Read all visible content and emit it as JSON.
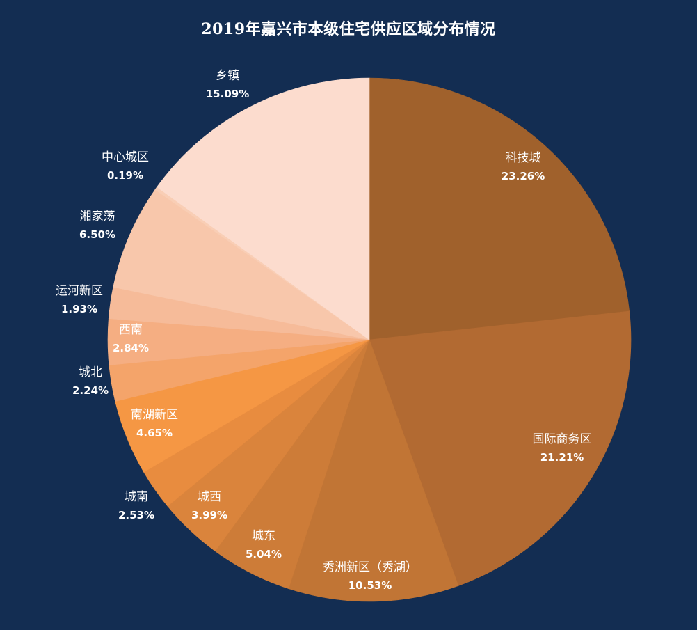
{
  "chart_data": {
    "type": "pie",
    "title": "2019年嘉兴市本级住宅供应区域分布情况",
    "unit": "%",
    "slices": [
      {
        "label": "科技城",
        "value": 23.26,
        "pct_label": "23.26%",
        "color": "#a0612c"
      },
      {
        "label": "国际商务区",
        "value": 21.21,
        "pct_label": "21.21%",
        "color": "#b26a32"
      },
      {
        "label": "秀洲新区（秀湖）",
        "value": 10.53,
        "pct_label": "10.53%",
        "color": "#c17535"
      },
      {
        "label": "城东",
        "value": 5.04,
        "pct_label": "5.04%",
        "color": "#cd7c38"
      },
      {
        "label": "城西",
        "value": 3.99,
        "pct_label": "3.99%",
        "color": "#da843c"
      },
      {
        "label": "城南",
        "value": 2.53,
        "pct_label": "2.53%",
        "color": "#e88c3f"
      },
      {
        "label": "南湖新区",
        "value": 4.65,
        "pct_label": "4.65%",
        "color": "#f59744"
      },
      {
        "label": "城北",
        "value": 2.24,
        "pct_label": "2.24%",
        "color": "#f4a46a"
      },
      {
        "label": "西南",
        "value": 2.84,
        "pct_label": "2.84%",
        "color": "#f5ae82"
      },
      {
        "label": "运河新区",
        "value": 1.93,
        "pct_label": "1.93%",
        "color": "#f6bb99"
      },
      {
        "label": "湘家荡",
        "value": 6.5,
        "pct_label": "6.50%",
        "color": "#f8c7ab"
      },
      {
        "label": "中心城区",
        "value": 0.19,
        "pct_label": "0.19%",
        "color": "#f9ceb5"
      },
      {
        "label": "乡镇",
        "value": 15.09,
        "pct_label": "15.09%",
        "color": "#fcdcce"
      }
    ]
  }
}
